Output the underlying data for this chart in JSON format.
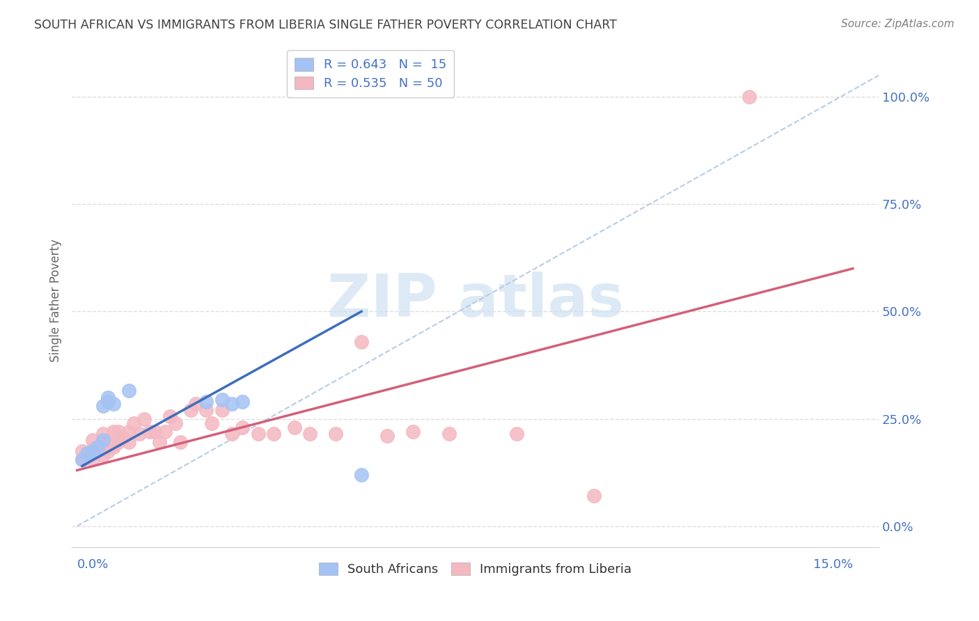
{
  "title": "SOUTH AFRICAN VS IMMIGRANTS FROM LIBERIA SINGLE FATHER POVERTY CORRELATION CHART",
  "source": "Source: ZipAtlas.com",
  "ylabel_label": "Single Father Poverty",
  "x_tick_labels_bottom": [
    "0.0%",
    "15.0%"
  ],
  "x_ticks_bottom": [
    0.0,
    0.15
  ],
  "y_ticks": [
    0.0,
    0.25,
    0.5,
    0.75,
    1.0
  ],
  "y_tick_labels": [
    "0.0%",
    "25.0%",
    "50.0%",
    "75.0%",
    "100.0%"
  ],
  "xlim": [
    -0.001,
    0.155
  ],
  "ylim": [
    -0.05,
    1.1
  ],
  "legend_entry1": "R = 0.643   N =  15",
  "legend_entry2": "R = 0.535   N = 50",
  "legend_labels": [
    "South Africans",
    "Immigrants from Liberia"
  ],
  "blue_scatter_color": "#a4c2f4",
  "pink_scatter_color": "#f4b8c1",
  "blue_line_color": "#3d6dbf",
  "pink_line_color": "#d45f7a",
  "diag_line_color": "#b8cce4",
  "axis_label_color": "#4472c4",
  "ylabel_color": "#666666",
  "title_color": "#404040",
  "source_color": "#808080",
  "grid_color": "#dddddd",
  "watermark_color": "#cfe2f3",
  "sa_points_x": [
    0.001,
    0.002,
    0.003,
    0.004,
    0.005,
    0.005,
    0.006,
    0.006,
    0.007,
    0.01,
    0.025,
    0.028,
    0.03,
    0.032,
    0.055
  ],
  "sa_points_y": [
    0.155,
    0.17,
    0.175,
    0.185,
    0.2,
    0.28,
    0.29,
    0.3,
    0.285,
    0.315,
    0.29,
    0.295,
    0.285,
    0.29,
    0.12
  ],
  "lib_points_x": [
    0.001,
    0.001,
    0.002,
    0.003,
    0.003,
    0.003,
    0.004,
    0.004,
    0.005,
    0.005,
    0.005,
    0.006,
    0.006,
    0.007,
    0.007,
    0.007,
    0.008,
    0.008,
    0.009,
    0.01,
    0.01,
    0.011,
    0.012,
    0.013,
    0.014,
    0.015,
    0.016,
    0.017,
    0.018,
    0.019,
    0.02,
    0.022,
    0.023,
    0.025,
    0.026,
    0.028,
    0.03,
    0.032,
    0.035,
    0.038,
    0.042,
    0.045,
    0.05,
    0.055,
    0.06,
    0.065,
    0.072,
    0.085,
    0.1,
    0.13
  ],
  "lib_points_y": [
    0.155,
    0.175,
    0.17,
    0.155,
    0.18,
    0.2,
    0.175,
    0.185,
    0.165,
    0.18,
    0.215,
    0.175,
    0.195,
    0.185,
    0.19,
    0.22,
    0.195,
    0.22,
    0.205,
    0.195,
    0.22,
    0.24,
    0.215,
    0.25,
    0.22,
    0.22,
    0.195,
    0.22,
    0.255,
    0.24,
    0.195,
    0.27,
    0.285,
    0.27,
    0.24,
    0.27,
    0.215,
    0.23,
    0.215,
    0.215,
    0.23,
    0.215,
    0.215,
    0.43,
    0.21,
    0.22,
    0.215,
    0.215,
    0.07,
    1.0
  ],
  "blue_trend_x": [
    0.001,
    0.055
  ],
  "blue_trend_y": [
    0.14,
    0.5
  ],
  "pink_trend_x": [
    0.0,
    0.15
  ],
  "pink_trend_y": [
    0.13,
    0.6
  ]
}
